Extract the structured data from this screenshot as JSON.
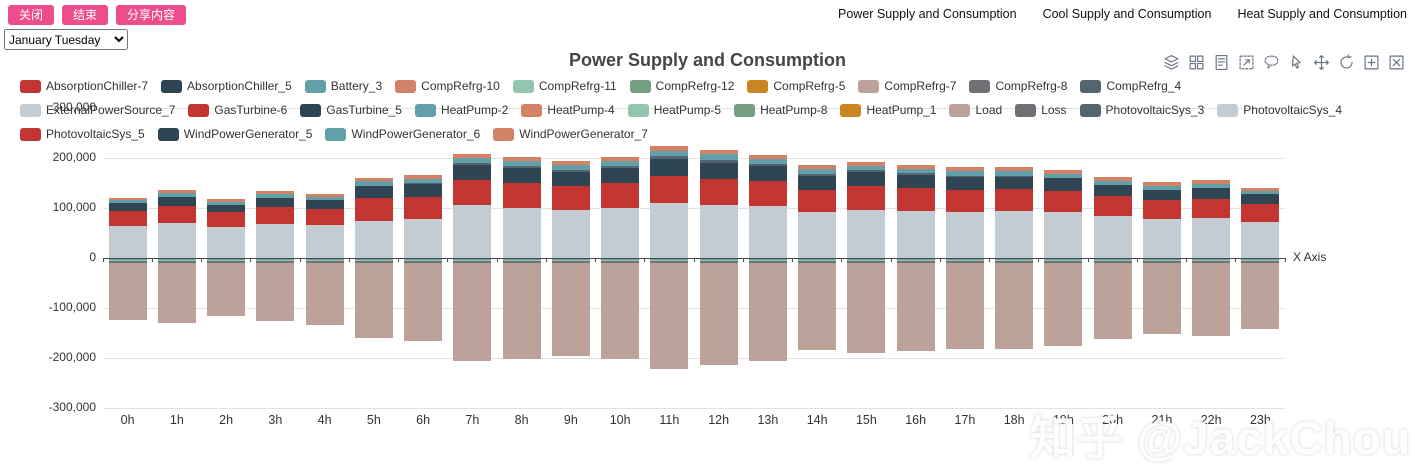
{
  "toolbar": {
    "close_label": "关闭",
    "end_label": "结束",
    "share_label": "分享内容",
    "button_color": "#ee4d8b"
  },
  "nav": {
    "links": [
      "Power Supply and Consumption",
      "Cool Supply and Consumption",
      "Heat Supply and Consumption"
    ]
  },
  "controls": {
    "date_select": {
      "value": "January Tuesday",
      "options": [
        "January Tuesday"
      ]
    }
  },
  "chart": {
    "title": "Power Supply and Consumption",
    "toolbox_icons": [
      "stack-icon",
      "tiled-icon",
      "data-view-icon",
      "zoom-reset-icon",
      "lasso-icon",
      "pointer-select-icon",
      "pan-icon",
      "restore-icon",
      "zoom-in-icon",
      "clear-icon"
    ],
    "legend_rows": [
      [
        {
          "label": "AbsorptionChiller-7",
          "color": "#c23531"
        },
        {
          "label": "AbsorptionChiller_5",
          "color": "#2f4554"
        },
        {
          "label": "Battery_3",
          "color": "#61a0a8"
        },
        {
          "label": "CompRefrg-10",
          "color": "#d48265"
        },
        {
          "label": "CompRefrg-11",
          "color": "#91c7ae"
        },
        {
          "label": "CompRefrg-12",
          "color": "#749f83"
        },
        {
          "label": "CompRefrg-5",
          "color": "#ca8622"
        },
        {
          "label": "CompRefrg-7",
          "color": "#bda29a"
        },
        {
          "label": "CompRefrg-8",
          "color": "#6e7074"
        },
        {
          "label": "CompRefrg_4",
          "color": "#546570"
        }
      ],
      [
        {
          "label": "ExternalPowerSource_7",
          "color": "#c4ccd3"
        },
        {
          "label": "GasTurbine-6",
          "color": "#c23531"
        },
        {
          "label": "GasTurbine_5",
          "color": "#2f4554"
        },
        {
          "label": "HeatPump-2",
          "color": "#61a0a8"
        },
        {
          "label": "HeatPump-4",
          "color": "#d48265"
        },
        {
          "label": "HeatPump-5",
          "color": "#91c7ae"
        },
        {
          "label": "HeatPump-8",
          "color": "#749f83"
        },
        {
          "label": "HeatPump_1",
          "color": "#ca8622"
        },
        {
          "label": "Load",
          "color": "#bda29a"
        },
        {
          "label": "Loss",
          "color": "#6e7074"
        },
        {
          "label": "PhotovoltaicSys_3",
          "color": "#546570"
        },
        {
          "label": "PhotovoltaicSys_4",
          "color": "#c4ccd3"
        }
      ],
      [
        {
          "label": "PhotovoltaicSys_5",
          "color": "#c23531"
        },
        {
          "label": "WindPowerGenerator_5",
          "color": "#2f4554"
        },
        {
          "label": "WindPowerGenerator_6",
          "color": "#61a0a8"
        },
        {
          "label": "WindPowerGenerator_7",
          "color": "#d48265"
        }
      ]
    ],
    "y_axis": {
      "ticks": [
        {
          "label": "300,000",
          "value": 300000
        },
        {
          "label": "200,000",
          "value": 200000
        },
        {
          "label": "100,000",
          "value": 100000
        },
        {
          "label": "0",
          "value": 0
        },
        {
          "label": "-100,000",
          "value": -100000
        },
        {
          "label": "-200,000",
          "value": -200000
        },
        {
          "label": "-300,000",
          "value": -300000
        }
      ]
    },
    "x_axis": {
      "name": "X Axis"
    }
  },
  "chart_data": {
    "type": "bar",
    "stacked": true,
    "title": "Power Supply and Consumption",
    "xlabel": "X Axis",
    "ylabel": "",
    "ylim": [
      -300000,
      300000
    ],
    "grid": true,
    "legend_position": "top",
    "categories": [
      "0h",
      "1h",
      "2h",
      "3h",
      "4h",
      "5h",
      "6h",
      "7h",
      "8h",
      "9h",
      "10h",
      "11h",
      "12h",
      "13h",
      "14h",
      "15h",
      "16h",
      "17h",
      "18h",
      "19h",
      "20h",
      "21h",
      "22h",
      "23h"
    ],
    "series": [
      {
        "name": "ExternalPowerSource_7",
        "color": "#c4ccd3",
        "values": [
          65000,
          70000,
          62000,
          68000,
          66000,
          75000,
          78000,
          106000,
          100000,
          96000,
          100000,
          110000,
          107000,
          104000,
          92000,
          97000,
          95000,
          93000,
          94000,
          92000,
          85000,
          78000,
          80000,
          72000
        ]
      },
      {
        "name": "GasTurbine-6",
        "color": "#c23531",
        "values": [
          30000,
          35000,
          30000,
          35000,
          33000,
          45000,
          45000,
          50000,
          50000,
          48000,
          50000,
          55000,
          52000,
          50000,
          45000,
          47000,
          45000,
          44000,
          44000,
          43000,
          40000,
          38000,
          39000,
          36000
        ]
      },
      {
        "name": "GasTurbine_5",
        "color": "#2f4554",
        "values": [
          15000,
          18000,
          15000,
          18000,
          17000,
          25000,
          25000,
          30000,
          30000,
          28000,
          30000,
          33000,
          32000,
          30000,
          28000,
          28000,
          27000,
          26000,
          26000,
          25000,
          22000,
          21000,
          22000,
          20000
        ]
      },
      {
        "name": "PhotovoltaicSys_3",
        "color": "#546570",
        "values": [
          0,
          0,
          0,
          0,
          0,
          0,
          2000,
          4000,
          5000,
          5000,
          5000,
          6000,
          6000,
          5000,
          4000,
          4000,
          3000,
          2000,
          1000,
          0,
          0,
          0,
          0,
          0
        ]
      },
      {
        "name": "Battery_3",
        "color": "#61a0a8",
        "values": [
          6000,
          7000,
          6000,
          7000,
          7000,
          9000,
          9000,
          10000,
          10000,
          10000,
          10000,
          11000,
          11000,
          10000,
          9000,
          9000,
          9000,
          9000,
          9000,
          9000,
          8000,
          8000,
          8000,
          7000
        ]
      },
      {
        "name": "WindPowerGenerator_7",
        "color": "#d48265",
        "values": [
          5000,
          6000,
          5000,
          6000,
          6000,
          7000,
          7000,
          8000,
          8000,
          8000,
          8000,
          9000,
          9000,
          8000,
          8000,
          8000,
          8000,
          8000,
          8000,
          8000,
          7000,
          7000,
          7000,
          6000
        ]
      },
      {
        "name": "HeatPump-2",
        "color": "#61a0a8",
        "values": [
          -3000,
          -3000,
          -3000,
          -3000,
          -3000,
          -3000,
          -3000,
          -3000,
          -3000,
          -3000,
          -3000,
          -3000,
          -3000,
          -3000,
          -3000,
          -3000,
          -3000,
          -3000,
          -3000,
          -3000,
          -3000,
          -3000,
          -3000,
          -3000
        ]
      },
      {
        "name": "HeatPump-5",
        "color": "#91c7ae",
        "values": [
          -2000,
          -2000,
          -2000,
          -2000,
          -2000,
          -2000,
          -2000,
          -2000,
          -2000,
          -2000,
          -2000,
          -2000,
          -2000,
          -2000,
          -2000,
          -2000,
          -2000,
          -2000,
          -2000,
          -2000,
          -2000,
          -2000,
          -2000,
          -2000
        ]
      },
      {
        "name": "Loss",
        "color": "#6e7074",
        "values": [
          -4000,
          -4000,
          -4000,
          -4000,
          -4000,
          -4000,
          -4000,
          -4000,
          -4000,
          -4000,
          -4000,
          -4000,
          -4000,
          -4000,
          -4000,
          -4000,
          -4000,
          -4000,
          -4000,
          -4000,
          -4000,
          -4000,
          -4000,
          -4000
        ]
      },
      {
        "name": "Load",
        "color": "#bda29a",
        "values": [
          -115000,
          -121000,
          -106000,
          -117000,
          -125000,
          -151000,
          -156000,
          -197000,
          -192000,
          -187000,
          -193000,
          -212000,
          -205000,
          -197000,
          -175000,
          -181000,
          -177000,
          -172000,
          -172000,
          -167000,
          -152000,
          -142000,
          -147000,
          -133000
        ]
      }
    ]
  },
  "watermark": "知乎 @JackChou"
}
